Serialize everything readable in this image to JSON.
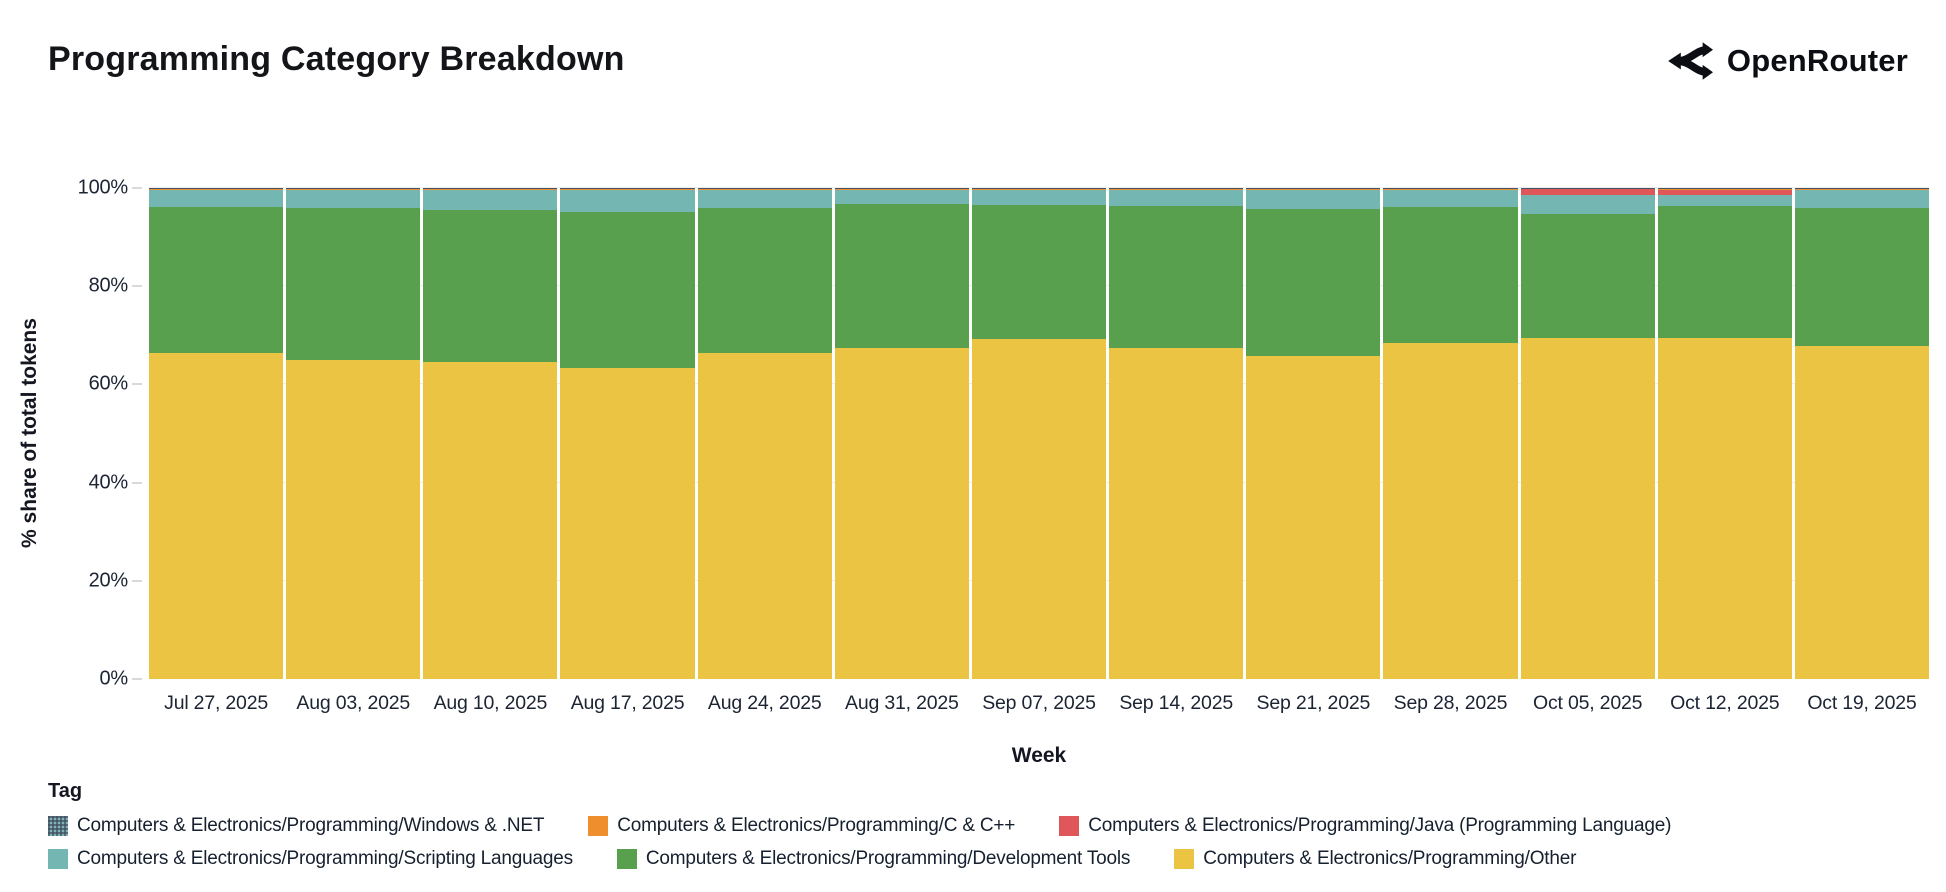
{
  "header": {
    "title": "Programming Category Breakdown",
    "brand": "OpenRouter"
  },
  "chart_data": {
    "type": "bar",
    "variant": "stacked-100",
    "title": "Programming Category Breakdown",
    "xlabel": "Week",
    "ylabel": "% share of total tokens",
    "ylim": [
      0,
      100
    ],
    "yticks": [
      0,
      20,
      40,
      60,
      80,
      100
    ],
    "ytick_labels": [
      "0%",
      "20%",
      "40%",
      "60%",
      "80%",
      "100%"
    ],
    "grid": "horizontal-faint",
    "legend_position": "bottom",
    "categories": [
      "Jul 27, 2025",
      "Aug 03, 2025",
      "Aug 10, 2025",
      "Aug 17, 2025",
      "Aug 24, 2025",
      "Aug 31, 2025",
      "Sep 07, 2025",
      "Sep 14, 2025",
      "Sep 21, 2025",
      "Sep 28, 2025",
      "Oct 05, 2025",
      "Oct 12, 2025",
      "Oct 19, 2025"
    ],
    "stack_order": "bottom-to-top",
    "series": [
      {
        "name": "Computers & Electronics/Programming/Other",
        "color": "#ecc444",
        "values": [
          66.5,
          65.0,
          64.6,
          63.3,
          66.3,
          67.5,
          69.3,
          67.5,
          65.8,
          68.5,
          69.4,
          69.5,
          67.8
        ]
      },
      {
        "name": "Computers & Electronics/Programming/Development Tools",
        "color": "#58a04e",
        "values": [
          29.6,
          30.9,
          31.0,
          31.9,
          29.7,
          29.3,
          27.2,
          28.8,
          30.0,
          27.6,
          25.3,
          26.8,
          28.2
        ]
      },
      {
        "name": "Computers & Electronics/Programming/Scripting Languages",
        "color": "#74b6b1",
        "values": [
          3.5,
          3.7,
          4.0,
          4.4,
          3.6,
          2.8,
          3.1,
          3.3,
          3.8,
          3.5,
          3.9,
          2.2,
          3.6
        ]
      },
      {
        "name": "Computers & Electronics/Programming/Java (Programming Language)",
        "color": "#e05759",
        "values": [
          0,
          0,
          0,
          0,
          0,
          0,
          0,
          0,
          0,
          0,
          1.2,
          1.2,
          0
        ]
      },
      {
        "name": "Computers & Electronics/Programming/C & C++",
        "color": "#ef8e2c",
        "values": [
          0.3,
          0.3,
          0.3,
          0.3,
          0.3,
          0.3,
          0.3,
          0.3,
          0.3,
          0.3,
          0.1,
          0.2,
          0.3
        ]
      },
      {
        "name": "Computers & Electronics/Programming/Windows & .NET",
        "color": "#475569",
        "values": [
          0.1,
          0.1,
          0.1,
          0.1,
          0.1,
          0.1,
          0.1,
          0.1,
          0.1,
          0.1,
          0.1,
          0.1,
          0.1
        ]
      }
    ]
  },
  "legend": {
    "title": "Tag",
    "rows": [
      [
        {
          "label": "Computers & Electronics/Programming/Windows & .NET",
          "color": "#475569",
          "pattern": true
        },
        {
          "label": "Computers & Electronics/Programming/C & C++",
          "color": "#ef8e2c",
          "pattern": false
        },
        {
          "label": "Computers & Electronics/Programming/Java (Programming Language)",
          "color": "#e05759",
          "pattern": false
        }
      ],
      [
        {
          "label": "Computers & Electronics/Programming/Scripting Languages",
          "color": "#74b6b1",
          "pattern": false
        },
        {
          "label": "Computers & Electronics/Programming/Development Tools",
          "color": "#58a04e",
          "pattern": false
        },
        {
          "label": "Computers & Electronics/Programming/Other",
          "color": "#ecc444",
          "pattern": false
        }
      ]
    ]
  }
}
